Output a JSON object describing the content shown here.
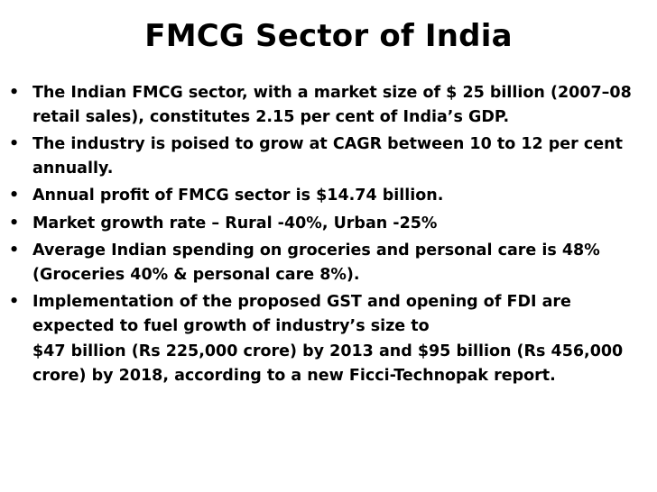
{
  "slide": {
    "title": "FMCG Sector of India",
    "bullet_symbol": "•",
    "bullets": [
      "The Indian FMCG sector, with a market size of $ 25 billion (2007–08 retail sales), constitutes 2.15 per cent of India’s GDP.",
      "The industry is poised to grow at CAGR between 10 to 12 per cent annually.",
      "Annual profit of FMCG sector is $14.74 billion.",
      "Market growth rate – Rural -40%, Urban -25%",
      "Average Indian spending on groceries and personal care is 48% (Groceries 40% & personal care 8%).",
      "Implementation of the proposed GST and opening of FDI are expected to fuel growth of industry’s size to"
    ],
    "continuation": "$47 billion (Rs 225,000 crore) by 2013 and $95 billion (Rs 456,000 crore) by 2018, according to a new Ficci-Technopak report."
  }
}
